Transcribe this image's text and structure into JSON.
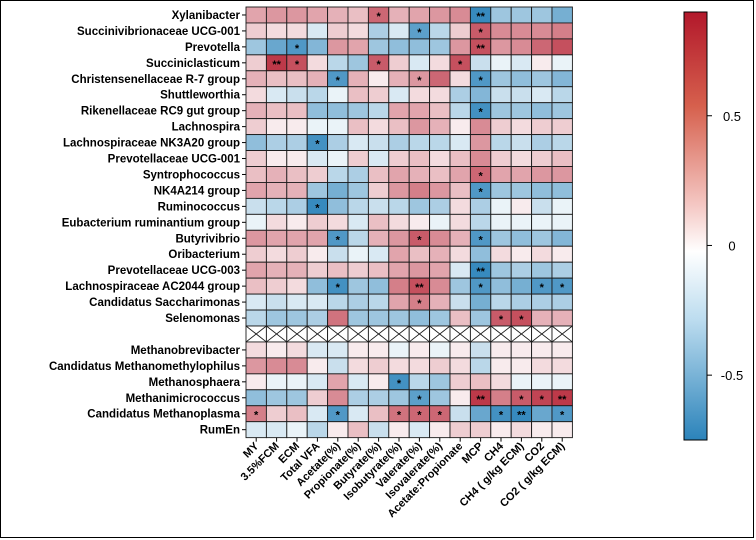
{
  "chart_data": {
    "type": "heatmap",
    "title": "",
    "xlabel": "",
    "ylabel": "",
    "rows": [
      "Xylanibacter",
      "Succinivibrionaceae UCG-001",
      "Prevotella",
      "Succiniclasticum",
      "Christensenellaceae R-7 group",
      "Shuttleworthia",
      "Rikenellaceae RC9 gut group",
      "Lachnospira",
      "Lachnospiraceae NK3A20 group",
      "Prevotellaceae UCG-001",
      "Syntrophococcus",
      "NK4A214 group",
      "Ruminococcus",
      "Eubacterium ruminantium group",
      "Butyrivibrio",
      "Oribacterium",
      "Prevotellaceae UCG-003",
      "Lachnospiraceae AC2044 group",
      "Candidatus Saccharimonas",
      "Selenomonas",
      "",
      "Methanobrevibacter",
      "Candidatus Methanomethylophilus",
      "Methanosphaera",
      "Methanimicrococcus",
      "Candidatus Methanoplasma",
      "RumEn"
    ],
    "columns": [
      "MY",
      "3.5%FCM",
      "ECM",
      "Total VFA",
      "Acetate(%)",
      "Propionate(%)",
      "Butyrate(%)",
      "Isobutyrate(%)",
      "Valerate(%)",
      "Isovalerate(%)",
      "Acetate:Propionate",
      "MCP",
      "CH4",
      "CH4 ( g/kg ECM)",
      "CO2",
      "CO2 ( g/kg ECM)"
    ],
    "values": [
      [
        0.3,
        0.35,
        0.35,
        0.3,
        0.25,
        0.2,
        0.55,
        0.25,
        0.3,
        0.35,
        0.4,
        -0.7,
        -0.3,
        -0.3,
        -0.3,
        -0.45
      ],
      [
        0.15,
        0.1,
        0.1,
        -0.1,
        0.15,
        0.1,
        -0.25,
        -0.1,
        -0.55,
        -0.2,
        0.15,
        0.6,
        0.4,
        0.4,
        0.4,
        0.45
      ],
      [
        -0.3,
        -0.5,
        -0.6,
        -0.4,
        0.35,
        0.3,
        -0.3,
        -0.35,
        -0.35,
        -0.3,
        0.35,
        0.65,
        0.35,
        0.4,
        0.55,
        0.65
      ],
      [
        0.15,
        0.75,
        0.65,
        0.1,
        -0.2,
        -0.3,
        0.6,
        0.15,
        -0.1,
        0.1,
        0.65,
        -0.15,
        -0.05,
        -0.1,
        0.05,
        -0.05
      ],
      [
        0.25,
        0.2,
        0.2,
        0.25,
        -0.6,
        0.25,
        0.05,
        0.25,
        0.35,
        0.55,
        0.1,
        -0.6,
        -0.3,
        -0.35,
        -0.3,
        -0.4
      ],
      [
        0.1,
        -0.1,
        -0.15,
        -0.2,
        -0.05,
        0.2,
        0.15,
        -0.1,
        0.1,
        0.1,
        -0.25,
        -0.4,
        -0.15,
        -0.15,
        -0.1,
        -0.2
      ],
      [
        0.25,
        0.2,
        0.2,
        -0.35,
        -0.35,
        -0.3,
        -0.2,
        0.3,
        0.3,
        0.2,
        -0.2,
        -0.65,
        -0.3,
        -0.3,
        -0.35,
        -0.3
      ],
      [
        0.15,
        0.05,
        0.05,
        -0.05,
        -0.05,
        0.2,
        0.1,
        0.2,
        0.35,
        0.25,
        0.05,
        0.4,
        0.15,
        0.1,
        0.15,
        0.15
      ],
      [
        -0.35,
        -0.25,
        -0.25,
        -0.65,
        -0.25,
        -0.1,
        -0.15,
        -0.25,
        -0.2,
        -0.2,
        -0.1,
        0.35,
        -0.2,
        -0.15,
        -0.25,
        -0.2
      ],
      [
        0.15,
        0.05,
        0.05,
        -0.1,
        -0.05,
        0.15,
        -0.1,
        0.15,
        0.2,
        0.1,
        0.2,
        0.4,
        0.15,
        0.1,
        0.15,
        0.2
      ],
      [
        0.2,
        0.25,
        0.2,
        0.15,
        -0.2,
        -0.25,
        0.2,
        0.3,
        0.25,
        0.2,
        0.3,
        0.55,
        0.3,
        0.3,
        0.35,
        0.35
      ],
      [
        0.3,
        0.25,
        0.25,
        -0.3,
        -0.45,
        -0.3,
        0.15,
        0.35,
        0.45,
        0.35,
        0.2,
        -0.6,
        -0.3,
        -0.3,
        -0.35,
        -0.35
      ],
      [
        -0.15,
        -0.2,
        -0.25,
        -0.7,
        -0.35,
        -0.2,
        -0.15,
        -0.2,
        -0.3,
        -0.25,
        0.1,
        -0.25,
        -0.05,
        0.05,
        -0.15,
        -0.05
      ],
      [
        -0.05,
        0.1,
        0.05,
        0.15,
        0.1,
        -0.1,
        0.2,
        0.1,
        0.05,
        -0.05,
        0.1,
        -0.2,
        -0.05,
        -0.05,
        -0.05,
        -0.05
      ],
      [
        0.35,
        0.3,
        0.3,
        0.3,
        -0.6,
        -0.2,
        0.25,
        0.35,
        0.6,
        0.4,
        0.25,
        -0.6,
        -0.3,
        -0.35,
        -0.3,
        -0.4
      ],
      [
        0.15,
        0.1,
        0.15,
        0.05,
        -0.15,
        -0.05,
        -0.1,
        0.3,
        0.2,
        0.25,
        0.1,
        -0.35,
        0.1,
        0.05,
        0.1,
        0.05
      ],
      [
        0.3,
        0.25,
        0.25,
        0.15,
        0.2,
        0.15,
        0.2,
        0.3,
        0.35,
        0.3,
        -0.1,
        -0.7,
        -0.3,
        -0.25,
        -0.3,
        -0.25
      ],
      [
        0.2,
        0.15,
        0.1,
        -0.35,
        -0.65,
        -0.3,
        -0.35,
        0.45,
        0.65,
        0.4,
        -0.3,
        -0.6,
        -0.35,
        -0.45,
        -0.6,
        -0.6
      ],
      [
        -0.1,
        -0.15,
        -0.1,
        -0.1,
        -0.2,
        -0.25,
        -0.2,
        0.3,
        0.45,
        0.25,
        -0.15,
        -0.45,
        -0.2,
        -0.25,
        -0.25,
        -0.25
      ],
      [
        -0.2,
        -0.3,
        -0.3,
        -0.25,
        0.5,
        -0.3,
        -0.3,
        -0.3,
        -0.35,
        -0.3,
        0.2,
        -0.3,
        0.6,
        0.65,
        0.25,
        0.25
      ],
      null,
      [
        0.1,
        0.05,
        0.1,
        -0.1,
        -0.1,
        0.05,
        0.05,
        -0.05,
        0.05,
        -0.05,
        0.05,
        -0.15,
        0.05,
        0.05,
        0.05,
        0.05
      ],
      [
        0.35,
        0.4,
        0.4,
        0.05,
        -0.15,
        0.1,
        0.15,
        0.1,
        0.1,
        0.15,
        0.1,
        -0.2,
        0.05,
        0.05,
        0.1,
        0.1
      ],
      [
        0.05,
        -0.05,
        -0.05,
        -0.1,
        0.3,
        -0.1,
        0.05,
        -0.65,
        -0.2,
        -0.3,
        0.15,
        0.2,
        0.1,
        -0.05,
        -0.05,
        -0.05
      ],
      [
        -0.35,
        -0.3,
        -0.3,
        0.15,
        0.4,
        -0.25,
        -0.25,
        -0.3,
        -0.55,
        -0.3,
        0.05,
        0.75,
        0.45,
        0.6,
        0.7,
        0.75
      ],
      [
        0.45,
        0.15,
        0.2,
        -0.1,
        -0.6,
        -0.1,
        0.2,
        0.5,
        0.55,
        0.55,
        -0.15,
        -0.5,
        -0.65,
        -0.7,
        -0.5,
        -0.6
      ],
      [
        -0.1,
        -0.1,
        -0.05,
        -0.2,
        0.05,
        0.2,
        -0.15,
        0.05,
        -0.1,
        0.05,
        0.15,
        0.15,
        0.05,
        0.1,
        0.05,
        0.05
      ]
    ],
    "significance": [
      [
        "",
        "",
        "",
        "",
        "",
        "",
        "*",
        "",
        "",
        "",
        "",
        "**",
        "",
        "",
        "",
        ""
      ],
      [
        "",
        "",
        "",
        "",
        "",
        "",
        "",
        "",
        "*",
        "",
        "",
        "*",
        "",
        "",
        "",
        ""
      ],
      [
        "",
        "",
        "*",
        "",
        "",
        "",
        "",
        "",
        "",
        "",
        "",
        "**",
        "",
        "",
        "",
        ""
      ],
      [
        "",
        "**",
        "*",
        "",
        "",
        "",
        "*",
        "",
        "",
        "",
        "*",
        "",
        "",
        "",
        "",
        ""
      ],
      [
        "",
        "",
        "",
        "",
        "*",
        "",
        "",
        "",
        "*",
        "",
        "",
        "*",
        "",
        "",
        "",
        ""
      ],
      [
        "",
        "",
        "",
        "",
        "",
        "",
        "",
        "",
        "",
        "",
        "",
        "",
        "",
        "",
        "",
        ""
      ],
      [
        "",
        "",
        "",
        "",
        "",
        "",
        "",
        "",
        "",
        "",
        "",
        "*",
        "",
        "",
        "",
        ""
      ],
      [
        "",
        "",
        "",
        "",
        "",
        "",
        "",
        "",
        "",
        "",
        "",
        "",
        "",
        "",
        "",
        ""
      ],
      [
        "",
        "",
        "",
        "*",
        "",
        "",
        "",
        "",
        "",
        "",
        "",
        "",
        "",
        "",
        "",
        ""
      ],
      [
        "",
        "",
        "",
        "",
        "",
        "",
        "",
        "",
        "",
        "",
        "",
        "",
        "",
        "",
        "",
        ""
      ],
      [
        "",
        "",
        "",
        "",
        "",
        "",
        "",
        "",
        "",
        "",
        "",
        "*",
        "",
        "",
        "",
        ""
      ],
      [
        "",
        "",
        "",
        "",
        "",
        "",
        "",
        "",
        "",
        "",
        "",
        "*",
        "",
        "",
        "",
        ""
      ],
      [
        "",
        "",
        "",
        "*",
        "",
        "",
        "",
        "",
        "",
        "",
        "",
        "",
        "",
        "",
        "",
        ""
      ],
      [
        "",
        "",
        "",
        "",
        "",
        "",
        "",
        "",
        "",
        "",
        "",
        "",
        "",
        "",
        "",
        ""
      ],
      [
        "",
        "",
        "",
        "",
        "*",
        "",
        "",
        "",
        "*",
        "",
        "",
        "*",
        "",
        "",
        "",
        ""
      ],
      [
        "",
        "",
        "",
        "",
        "",
        "",
        "",
        "",
        "",
        "",
        "",
        "",
        "",
        "",
        "",
        ""
      ],
      [
        "",
        "",
        "",
        "",
        "",
        "",
        "",
        "",
        "",
        "",
        "",
        "**",
        "",
        "",
        "",
        ""
      ],
      [
        "",
        "",
        "",
        "",
        "*",
        "",
        "",
        "",
        "**",
        "",
        "",
        "*",
        "",
        "",
        "*",
        "*"
      ],
      [
        "",
        "",
        "",
        "",
        "",
        "",
        "",
        "",
        "*",
        "",
        "",
        "",
        "",
        "",
        "",
        ""
      ],
      [
        "",
        "",
        "",
        "",
        "",
        "",
        "",
        "",
        "",
        "",
        "",
        "",
        "*",
        "*",
        "",
        ""
      ],
      null,
      [
        "",
        "",
        "",
        "",
        "",
        "",
        "",
        "",
        "",
        "",
        "",
        "",
        "",
        "",
        "",
        ""
      ],
      [
        "",
        "",
        "",
        "",
        "",
        "",
        "",
        "",
        "",
        "",
        "",
        "",
        "",
        "",
        "",
        ""
      ],
      [
        "",
        "",
        "",
        "",
        "",
        "",
        "",
        "*",
        "",
        "",
        "",
        "",
        "",
        "",
        "",
        ""
      ],
      [
        "",
        "",
        "",
        "",
        "",
        "",
        "",
        "",
        "*",
        "",
        "",
        "**",
        "",
        "*",
        "*",
        "**"
      ],
      [
        "*",
        "",
        "",
        "",
        "*",
        "",
        "",
        "*",
        "*",
        "*",
        "",
        "",
        "*",
        "**",
        "",
        "*"
      ],
      [
        "",
        "",
        "",
        "",
        "",
        "",
        "",
        "",
        "",
        "",
        "",
        "",
        "",
        "",
        "",
        ""
      ]
    ],
    "color_scale": {
      "range": [
        -0.75,
        0.9
      ],
      "ticks": [
        0.5,
        0,
        -0.5
      ],
      "tick_labels": [
        "0.5",
        "0",
        "-0.5"
      ],
      "colors": {
        "negative": "#2b83ba",
        "zero": "#ffffff",
        "positive": "#b2182b"
      }
    },
    "grid": true,
    "legend": "right"
  }
}
